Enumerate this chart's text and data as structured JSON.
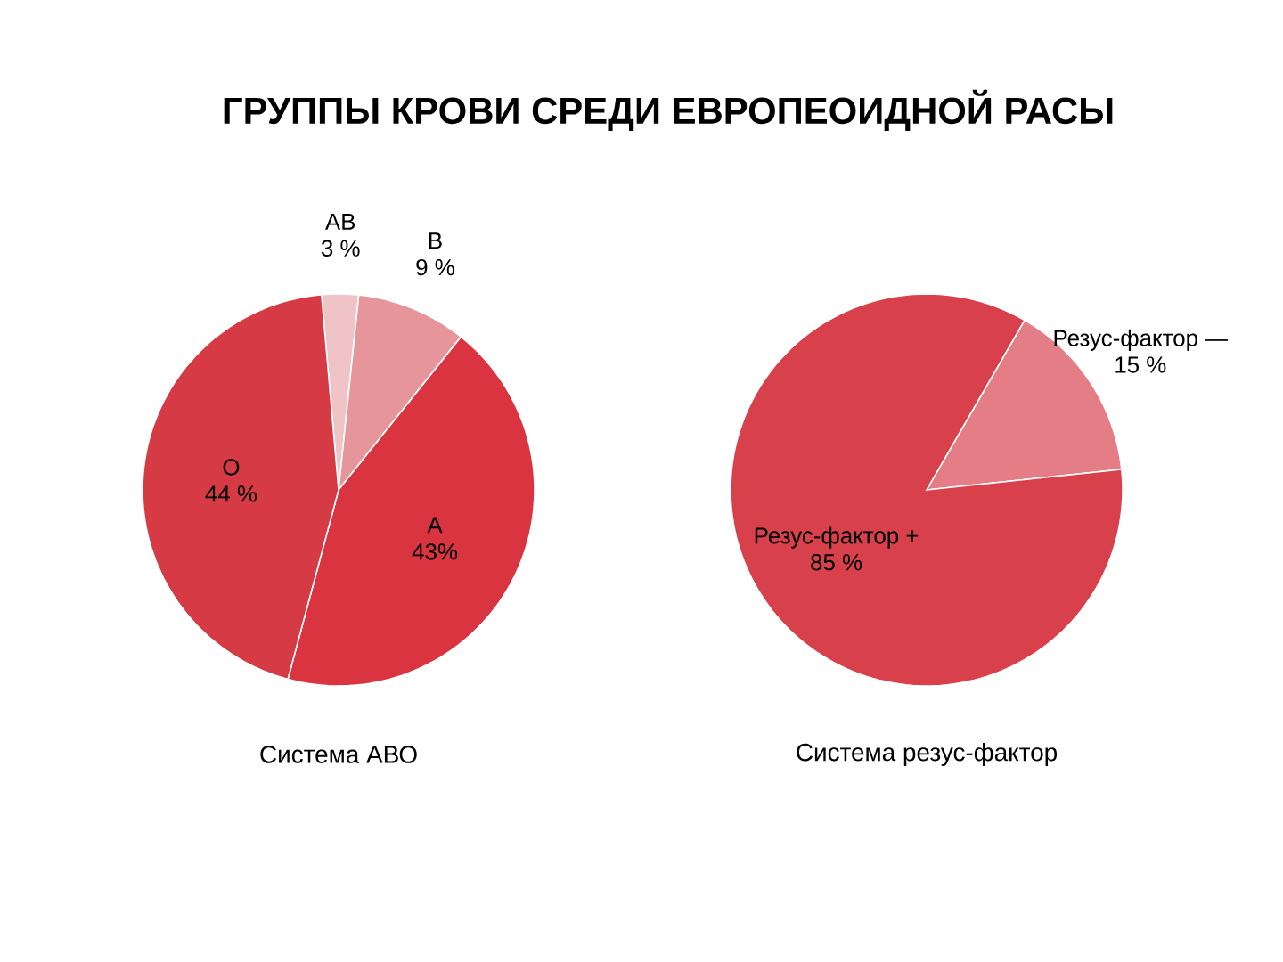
{
  "chart_data": [
    {
      "type": "pie",
      "title": "ГРУППЫ КРОВИ СРЕДИ ЕВРОПЕОИДНОЙ РАСЫ",
      "categories": [
        "АВ",
        "В",
        "А",
        "О"
      ],
      "values": [
        3,
        9,
        43,
        44
      ],
      "value_labels": [
        "3 %",
        "9 %",
        "43%",
        "44 %"
      ],
      "colors": [
        "#f0c4c6",
        "#e6959b",
        "#d9343f",
        "#d63a45"
      ],
      "annotations": [
        "Система АВО"
      ]
    },
    {
      "type": "pie",
      "categories": [
        "Резус-фактор —",
        "Резус-фактор +"
      ],
      "values": [
        15,
        85
      ],
      "value_labels": [
        "15 %",
        "85 %"
      ],
      "colors": [
        "#e47d86",
        "#d8404b"
      ],
      "annotations": [
        "Система резус-фактор"
      ]
    }
  ]
}
